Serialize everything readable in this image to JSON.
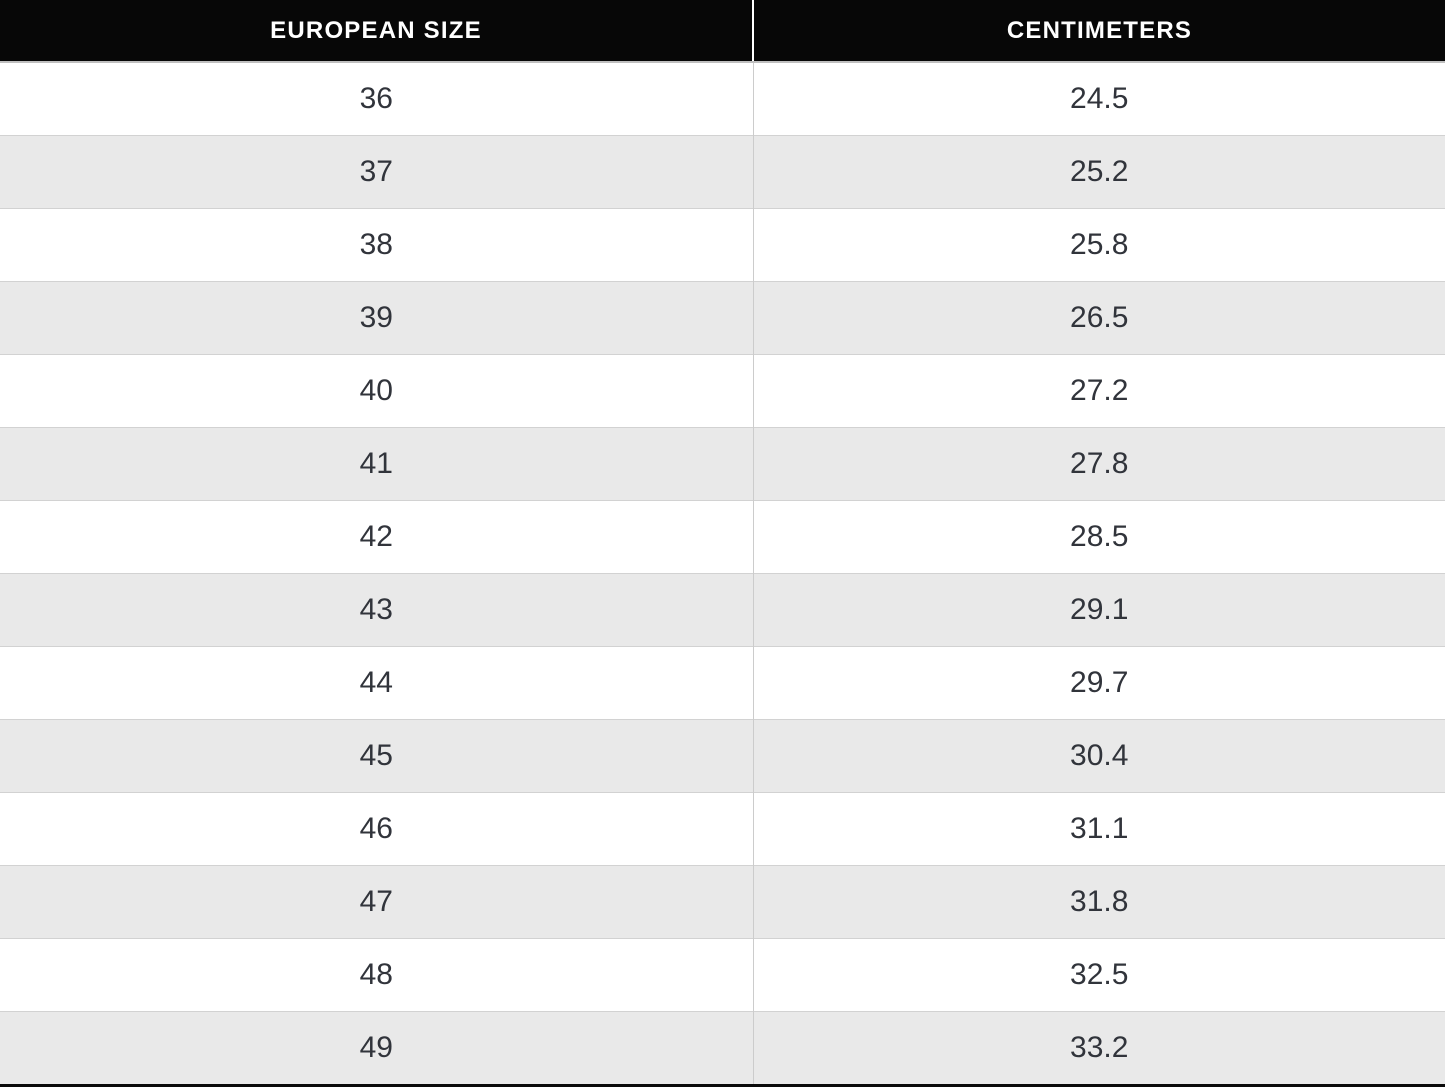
{
  "table": {
    "columns": [
      {
        "label": "EUROPEAN SIZE"
      },
      {
        "label": "CENTIMETERS"
      }
    ],
    "rows": [
      {
        "size": "36",
        "cm": "24.5"
      },
      {
        "size": "37",
        "cm": "25.2"
      },
      {
        "size": "38",
        "cm": "25.8"
      },
      {
        "size": "39",
        "cm": "26.5"
      },
      {
        "size": "40",
        "cm": "27.2"
      },
      {
        "size": "41",
        "cm": "27.8"
      },
      {
        "size": "42",
        "cm": "28.5"
      },
      {
        "size": "43",
        "cm": "29.1"
      },
      {
        "size": "44",
        "cm": "29.7"
      },
      {
        "size": "45",
        "cm": "30.4"
      },
      {
        "size": "46",
        "cm": "31.1"
      },
      {
        "size": "47",
        "cm": "31.8"
      },
      {
        "size": "48",
        "cm": "32.5"
      },
      {
        "size": "49",
        "cm": "33.2"
      }
    ]
  },
  "chart_data": {
    "type": "table",
    "title": "",
    "columns": [
      "EUROPEAN SIZE",
      "CENTIMETERS"
    ],
    "categories": [
      36,
      37,
      38,
      39,
      40,
      41,
      42,
      43,
      44,
      45,
      46,
      47,
      48,
      49
    ],
    "values": [
      24.5,
      25.2,
      25.8,
      26.5,
      27.2,
      27.8,
      28.5,
      29.1,
      29.7,
      30.4,
      31.1,
      31.8,
      32.5,
      33.2
    ]
  },
  "colors": {
    "header_bg": "#070707",
    "header_text": "#ffffff",
    "row_alt_bg": "#e9e9e9",
    "row_bg": "#ffffff",
    "horizontal_border": "#d2d2d2",
    "vertical_border_body": "#cccccc",
    "vertical_border_header": "#ffffff",
    "body_text": "#31343b"
  }
}
